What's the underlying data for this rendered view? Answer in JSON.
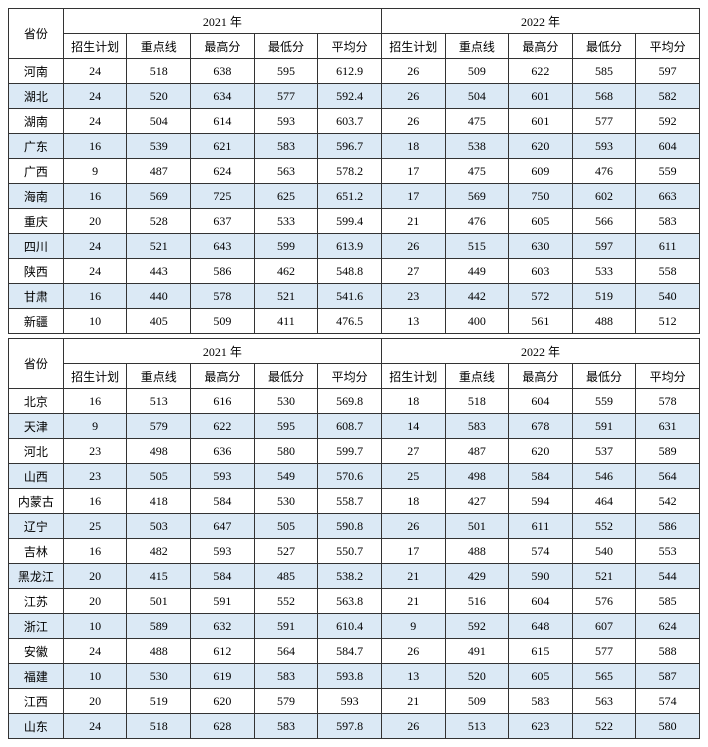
{
  "headers": {
    "province": "省份",
    "year2021": "2021 年",
    "year2022": "2022 年",
    "plan": "招生计划",
    "keyline": "重点线",
    "max": "最高分",
    "min": "最低分",
    "avg": "平均分"
  },
  "colors": {
    "stripe": "#dbe9f5",
    "border": "#333333",
    "background": "#ffffff",
    "text": "#000000"
  },
  "fonts": {
    "family": "SimSun",
    "size": 12
  },
  "table1": {
    "rows": [
      {
        "province": "河南",
        "y21": {
          "plan": "24",
          "keyline": "518",
          "max": "638",
          "min": "595",
          "avg": "612.9"
        },
        "y22": {
          "plan": "26",
          "keyline": "509",
          "max": "622",
          "min": "585",
          "avg": "597"
        }
      },
      {
        "province": "湖北",
        "y21": {
          "plan": "24",
          "keyline": "520",
          "max": "634",
          "min": "577",
          "avg": "592.4"
        },
        "y22": {
          "plan": "26",
          "keyline": "504",
          "max": "601",
          "min": "568",
          "avg": "582"
        }
      },
      {
        "province": "湖南",
        "y21": {
          "plan": "24",
          "keyline": "504",
          "max": "614",
          "min": "593",
          "avg": "603.7"
        },
        "y22": {
          "plan": "26",
          "keyline": "475",
          "max": "601",
          "min": "577",
          "avg": "592"
        }
      },
      {
        "province": "广东",
        "y21": {
          "plan": "16",
          "keyline": "539",
          "max": "621",
          "min": "583",
          "avg": "596.7"
        },
        "y22": {
          "plan": "18",
          "keyline": "538",
          "max": "620",
          "min": "593",
          "avg": "604"
        }
      },
      {
        "province": "广西",
        "y21": {
          "plan": "9",
          "keyline": "487",
          "max": "624",
          "min": "563",
          "avg": "578.2"
        },
        "y22": {
          "plan": "17",
          "keyline": "475",
          "max": "609",
          "min": "476",
          "avg": "559"
        }
      },
      {
        "province": "海南",
        "y21": {
          "plan": "16",
          "keyline": "569",
          "max": "725",
          "min": "625",
          "avg": "651.2"
        },
        "y22": {
          "plan": "17",
          "keyline": "569",
          "max": "750",
          "min": "602",
          "avg": "663"
        }
      },
      {
        "province": "重庆",
        "y21": {
          "plan": "20",
          "keyline": "528",
          "max": "637",
          "min": "533",
          "avg": "599.4"
        },
        "y22": {
          "plan": "21",
          "keyline": "476",
          "max": "605",
          "min": "566",
          "avg": "583"
        }
      },
      {
        "province": "四川",
        "y21": {
          "plan": "24",
          "keyline": "521",
          "max": "643",
          "min": "599",
          "avg": "613.9"
        },
        "y22": {
          "plan": "26",
          "keyline": "515",
          "max": "630",
          "min": "597",
          "avg": "611"
        }
      },
      {
        "province": "陕西",
        "y21": {
          "plan": "24",
          "keyline": "443",
          "max": "586",
          "min": "462",
          "avg": "548.8"
        },
        "y22": {
          "plan": "27",
          "keyline": "449",
          "max": "603",
          "min": "533",
          "avg": "558"
        }
      },
      {
        "province": "甘肃",
        "y21": {
          "plan": "16",
          "keyline": "440",
          "max": "578",
          "min": "521",
          "avg": "541.6"
        },
        "y22": {
          "plan": "23",
          "keyline": "442",
          "max": "572",
          "min": "519",
          "avg": "540"
        }
      },
      {
        "province": "新疆",
        "y21": {
          "plan": "10",
          "keyline": "405",
          "max": "509",
          "min": "411",
          "avg": "476.5"
        },
        "y22": {
          "plan": "13",
          "keyline": "400",
          "max": "561",
          "min": "488",
          "avg": "512"
        }
      }
    ]
  },
  "table2": {
    "rows": [
      {
        "province": "北京",
        "y21": {
          "plan": "16",
          "keyline": "513",
          "max": "616",
          "min": "530",
          "avg": "569.8"
        },
        "y22": {
          "plan": "18",
          "keyline": "518",
          "max": "604",
          "min": "559",
          "avg": "578"
        }
      },
      {
        "province": "天津",
        "y21": {
          "plan": "9",
          "keyline": "579",
          "max": "622",
          "min": "595",
          "avg": "608.7"
        },
        "y22": {
          "plan": "14",
          "keyline": "583",
          "max": "678",
          "min": "591",
          "avg": "631"
        }
      },
      {
        "province": "河北",
        "y21": {
          "plan": "23",
          "keyline": "498",
          "max": "636",
          "min": "580",
          "avg": "599.7"
        },
        "y22": {
          "plan": "27",
          "keyline": "487",
          "max": "620",
          "min": "537",
          "avg": "589"
        }
      },
      {
        "province": "山西",
        "y21": {
          "plan": "23",
          "keyline": "505",
          "max": "593",
          "min": "549",
          "avg": "570.6"
        },
        "y22": {
          "plan": "25",
          "keyline": "498",
          "max": "584",
          "min": "546",
          "avg": "564"
        }
      },
      {
        "province": "内蒙古",
        "y21": {
          "plan": "16",
          "keyline": "418",
          "max": "584",
          "min": "530",
          "avg": "558.7"
        },
        "y22": {
          "plan": "18",
          "keyline": "427",
          "max": "594",
          "min": "464",
          "avg": "542"
        }
      },
      {
        "province": "辽宁",
        "y21": {
          "plan": "25",
          "keyline": "503",
          "max": "647",
          "min": "505",
          "avg": "590.8"
        },
        "y22": {
          "plan": "26",
          "keyline": "501",
          "max": "611",
          "min": "552",
          "avg": "586"
        }
      },
      {
        "province": "吉林",
        "y21": {
          "plan": "16",
          "keyline": "482",
          "max": "593",
          "min": "527",
          "avg": "550.7"
        },
        "y22": {
          "plan": "17",
          "keyline": "488",
          "max": "574",
          "min": "540",
          "avg": "553"
        }
      },
      {
        "province": "黑龙江",
        "y21": {
          "plan": "20",
          "keyline": "415",
          "max": "584",
          "min": "485",
          "avg": "538.2"
        },
        "y22": {
          "plan": "21",
          "keyline": "429",
          "max": "590",
          "min": "521",
          "avg": "544"
        }
      },
      {
        "province": "江苏",
        "y21": {
          "plan": "20",
          "keyline": "501",
          "max": "591",
          "min": "552",
          "avg": "563.8"
        },
        "y22": {
          "plan": "21",
          "keyline": "516",
          "max": "604",
          "min": "576",
          "avg": "585"
        }
      },
      {
        "province": "浙江",
        "y21": {
          "plan": "10",
          "keyline": "589",
          "max": "632",
          "min": "591",
          "avg": "610.4"
        },
        "y22": {
          "plan": "9",
          "keyline": "592",
          "max": "648",
          "min": "607",
          "avg": "624"
        }
      },
      {
        "province": "安徽",
        "y21": {
          "plan": "24",
          "keyline": "488",
          "max": "612",
          "min": "564",
          "avg": "584.7"
        },
        "y22": {
          "plan": "26",
          "keyline": "491",
          "max": "615",
          "min": "577",
          "avg": "588"
        }
      },
      {
        "province": "福建",
        "y21": {
          "plan": "10",
          "keyline": "530",
          "max": "619",
          "min": "583",
          "avg": "593.8"
        },
        "y22": {
          "plan": "13",
          "keyline": "520",
          "max": "605",
          "min": "565",
          "avg": "587"
        }
      },
      {
        "province": "江西",
        "y21": {
          "plan": "20",
          "keyline": "519",
          "max": "620",
          "min": "579",
          "avg": "593"
        },
        "y22": {
          "plan": "21",
          "keyline": "509",
          "max": "583",
          "min": "563",
          "avg": "574"
        }
      },
      {
        "province": "山东",
        "y21": {
          "plan": "24",
          "keyline": "518",
          "max": "628",
          "min": "583",
          "avg": "597.8"
        },
        "y22": {
          "plan": "26",
          "keyline": "513",
          "max": "623",
          "min": "522",
          "avg": "580"
        }
      }
    ]
  }
}
